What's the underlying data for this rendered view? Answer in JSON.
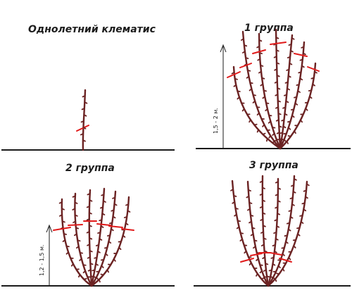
{
  "panels": {
    "annual": {
      "title": "Однолетний клематис"
    },
    "group1": {
      "title": "1 группа",
      "height_label": "1,5 - 2 м."
    },
    "group2": {
      "title": "2 группа",
      "height_label": "1,2 - 1,5 м."
    },
    "group3": {
      "title": "3 группа"
    }
  },
  "colors": {
    "stem": "#6b2222",
    "cut": "#e01b1b",
    "ground": "#1a1a1a"
  },
  "icons": {
    "arrow": "up-arrow-icon"
  }
}
